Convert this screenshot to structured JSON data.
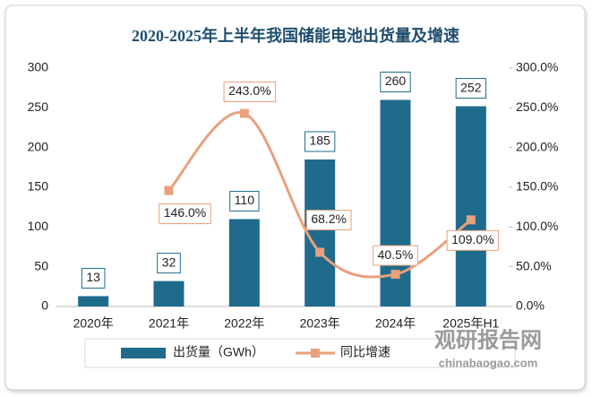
{
  "chart_data": {
    "type": "bar_line",
    "title": "2020-2025年上半年我国储能电池出货量及增速",
    "categories": [
      "2020年",
      "2021年",
      "2022年",
      "2023年",
      "2024年",
      "2025年H1"
    ],
    "series": [
      {
        "name": "出货量（GWh）",
        "color": "#1f6b8c",
        "type": "bar",
        "axis": "y",
        "values": [
          13,
          32,
          110,
          185,
          260,
          252
        ]
      },
      {
        "name": "同比增速",
        "color": "#e9a07c",
        "type": "line",
        "axis": "y2",
        "values": [
          null,
          146.0,
          243.0,
          68.2,
          40.5,
          109.0
        ],
        "value_labels": [
          null,
          "146.0%",
          "243.0%",
          "68.2%",
          "40.5%",
          "109.0%"
        ]
      }
    ],
    "ylim": [
      0,
      300
    ],
    "yticks": [
      0,
      50,
      100,
      150,
      200,
      250,
      300
    ],
    "y2lim": [
      0,
      300
    ],
    "y2ticks": [
      {
        "value": 0,
        "label": "0.0%"
      },
      {
        "value": 50,
        "label": "50.0%"
      },
      {
        "value": 100,
        "label": "100.0%"
      },
      {
        "value": 150,
        "label": "150.0%"
      },
      {
        "value": 200,
        "label": "200.0%"
      },
      {
        "value": 250,
        "label": "250.0%"
      },
      {
        "value": 300,
        "label": "300.0%"
      }
    ],
    "legend": "bottom",
    "watermark": "观研报告网",
    "watermark_url": "chinabaogao.com"
  }
}
